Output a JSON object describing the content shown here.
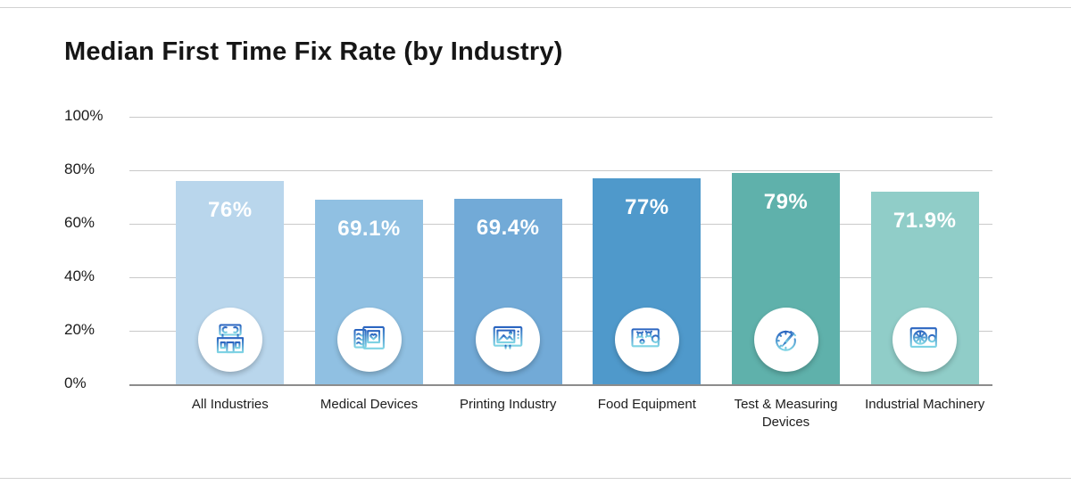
{
  "colors": {
    "gridline": "#c9c9c9",
    "axis_line": "#8c8c8c",
    "title_ink": "#161616",
    "value_label": "#ffffff",
    "icon_gradient_top": "#2a64c0",
    "icon_gradient_bottom": "#7fd4e4"
  },
  "chart_data": {
    "type": "bar",
    "title": "Median First Time Fix Rate (by Industry)",
    "xlabel": "",
    "ylabel": "",
    "ylim": [
      0,
      100
    ],
    "grid": true,
    "legend": false,
    "y_ticks": [
      "0%",
      "20%",
      "40%",
      "60%",
      "80%",
      "100%"
    ],
    "categories": [
      "All Industries",
      "Medical Devices",
      "Printing Industry",
      "Food Equipment",
      "Test & Measuring Devices",
      "Industrial Machinery"
    ],
    "values": [
      76,
      69.1,
      69.4,
      77,
      79,
      71.9
    ],
    "labels": [
      "76%",
      "69.1%",
      "69.4%",
      "77%",
      "79%",
      "71.9%"
    ],
    "bar_colors": [
      "#b9d6ec",
      "#90c0e2",
      "#72aad7",
      "#4f99cb",
      "#5fb1ab",
      "#90cdc8"
    ],
    "icons": [
      "storefront-wrench-icon",
      "medical-monitor-icon",
      "printing-display-icon",
      "equipment-panel-wrench-icon",
      "gauge-dropper-icon",
      "machinery-fan-wrench-icon"
    ]
  }
}
